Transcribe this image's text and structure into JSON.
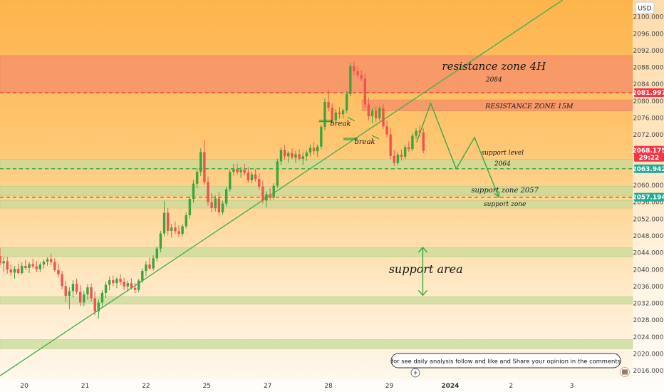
{
  "chart_data": {
    "type": "candlestick",
    "currency_label": "USD",
    "y_axis": {
      "range": [
        2014,
        2104
      ],
      "ticks": [
        "2016.000",
        "2020.000",
        "2024.000",
        "2028.000",
        "2032.000",
        "2036.000",
        "2040.000",
        "2044.000",
        "2048.000",
        "2052.000",
        "2056.000",
        "2060.000",
        "2064.000",
        "2068.000",
        "2072.000",
        "2076.000",
        "2080.000",
        "2084.000",
        "2088.000",
        "2092.000",
        "2096.000",
        "2100.000"
      ],
      "tick_values": [
        2016,
        2020,
        2024,
        2028,
        2032,
        2036,
        2040,
        2044,
        2048,
        2052,
        2056,
        2060,
        2064,
        2068,
        2072,
        2076,
        2080,
        2084,
        2088,
        2092,
        2096,
        2100
      ]
    },
    "x_axis": {
      "labels": [
        "20",
        "21",
        "22",
        "25",
        "27",
        "28",
        "29",
        "2024",
        "2",
        "3"
      ],
      "bold_labels": [
        "2024"
      ],
      "positions": [
        0,
        1,
        2,
        3,
        4,
        5,
        6,
        7,
        8,
        9
      ],
      "range": [
        -0.4,
        10.0
      ]
    },
    "price_badges": [
      {
        "label": "2081.997",
        "value": 2081.997,
        "color": "#f23645"
      },
      {
        "label": "2068.175",
        "value": 2068.175,
        "sub": "29:22",
        "color": "#f23645"
      },
      {
        "label": "2063.942",
        "value": 2063.942,
        "color": "#22ab94"
      },
      {
        "label": "2057.194",
        "value": 2057.194,
        "color": "#22ab94"
      }
    ],
    "zones": [
      {
        "kind": "resistance",
        "from": 2082.0,
        "to": 2090.8,
        "label": "resistance zone 4H",
        "sub": "2084",
        "color": "#f7936b"
      },
      {
        "kind": "resistance",
        "from": 2077.7,
        "to": 2080.3,
        "label": "RESISTANCE ZONE 15M",
        "color": "#f7936b"
      },
      {
        "kind": "support",
        "from": 2063.9,
        "to": 2066.2,
        "label": "support level",
        "sub": "2064",
        "color": "#c7dc9a"
      },
      {
        "kind": "support",
        "from": 2057.6,
        "to": 2059.8,
        "label": "support zone 2057",
        "color": "#c7dc9a"
      },
      {
        "kind": "support",
        "from": 2054.6,
        "to": 2056.4,
        "label": "support zone",
        "color": "#c7dc9a"
      },
      {
        "kind": "support",
        "from": 2043.0,
        "to": 2045.2,
        "label": "support area",
        "color": "#c7dc9a"
      },
      {
        "kind": "support",
        "from": 2031.8,
        "to": 2033.6,
        "label": "",
        "color": "#c7dc9a"
      },
      {
        "kind": "support",
        "from": 2021.2,
        "to": 2023.4,
        "label": "",
        "color": "#c7dc9a"
      }
    ],
    "dashed_levels": [
      {
        "value": 2081.997,
        "color": "#f23645"
      },
      {
        "value": 2063.942,
        "color": "#2e9e3f"
      },
      {
        "value": 2057.194,
        "color": "#2e9e3f"
      }
    ],
    "trendline": {
      "from": [
        -0.4,
        2014.8
      ],
      "to": [
        8.85,
        2104
      ],
      "color": "#4caf50"
    },
    "breaks": [
      {
        "label": "break",
        "x": 5.15,
        "y": 2074.8
      },
      {
        "label": "break",
        "x": 5.55,
        "y": 2070.5
      }
    ],
    "projection": [
      [
        6.45,
        2070.3
      ],
      [
        6.68,
        2079.5
      ],
      [
        7.1,
        2063.9
      ],
      [
        7.4,
        2071.4
      ],
      [
        7.8,
        2057.2
      ]
    ],
    "support_arrow": {
      "x": 6.55,
      "top": 2045.3,
      "bottom": 2033.9
    },
    "candles": [
      [
        -0.4,
        2043.3,
        2045.2,
        2041.0,
        2041.5
      ],
      [
        -0.34,
        2041.5,
        2043.0,
        2039.5,
        2042.0
      ],
      [
        -0.28,
        2042.0,
        2043.0,
        2039.0,
        2040.0
      ],
      [
        -0.22,
        2040.0,
        2041.2,
        2038.6,
        2039.3
      ],
      [
        -0.16,
        2039.3,
        2040.9,
        2037.8,
        2040.2
      ],
      [
        -0.1,
        2040.2,
        2041.4,
        2038.9,
        2039.2
      ],
      [
        -0.04,
        2039.2,
        2041.7,
        2038.8,
        2040.9
      ],
      [
        0.02,
        2040.9,
        2042.3,
        2039.9,
        2040.4
      ],
      [
        0.08,
        2040.4,
        2041.9,
        2039.2,
        2041.3
      ],
      [
        0.14,
        2041.3,
        2042.6,
        2040.3,
        2040.8
      ],
      [
        0.2,
        2040.8,
        2042.1,
        2039.4,
        2040.1
      ],
      [
        0.26,
        2040.1,
        2041.8,
        2039.4,
        2041.2
      ],
      [
        0.32,
        2041.2,
        2042.4,
        2040.3,
        2041.9
      ],
      [
        0.38,
        2041.9,
        2042.9,
        2040.9,
        2042.5
      ],
      [
        0.44,
        2042.5,
        2043.8,
        2041.1,
        2041.8
      ],
      [
        0.5,
        2041.8,
        2042.7,
        2039.5,
        2039.9
      ],
      [
        0.56,
        2039.9,
        2041.3,
        2038.3,
        2038.9
      ],
      [
        0.62,
        2038.9,
        2039.7,
        2035.3,
        2036.1
      ],
      [
        0.68,
        2036.1,
        2037.4,
        2032.3,
        2033.8
      ],
      [
        0.74,
        2033.8,
        2035.8,
        2030.6,
        2034.9
      ],
      [
        0.8,
        2034.9,
        2037.5,
        2033.4,
        2036.6
      ],
      [
        0.86,
        2036.6,
        2037.8,
        2034.1,
        2034.7
      ],
      [
        0.92,
        2034.7,
        2036.3,
        2031.4,
        2032.2
      ],
      [
        0.98,
        2032.2,
        2034.9,
        2031.3,
        2034.1
      ],
      [
        1.04,
        2034.1,
        2036.6,
        2032.8,
        2035.8
      ],
      [
        1.1,
        2035.8,
        2036.7,
        2032.4,
        2033.2
      ],
      [
        1.16,
        2033.2,
        2034.8,
        2029.2,
        2030.1
      ],
      [
        1.22,
        2030.1,
        2032.9,
        2028.3,
        2032.2
      ],
      [
        1.28,
        2032.2,
        2035.1,
        2031.1,
        2034.5
      ],
      [
        1.34,
        2034.5,
        2037.2,
        2033.3,
        2036.4
      ],
      [
        1.4,
        2036.4,
        2038.4,
        2035.1,
        2037.5
      ],
      [
        1.46,
        2037.5,
        2038.6,
        2036.0,
        2036.8
      ],
      [
        1.52,
        2036.8,
        2038.2,
        2035.6,
        2037.8
      ],
      [
        1.58,
        2037.8,
        2038.9,
        2036.3,
        2037.1
      ],
      [
        1.64,
        2037.1,
        2038.1,
        2035.2,
        2036.0
      ],
      [
        1.7,
        2036.0,
        2037.4,
        2034.8,
        2036.8
      ],
      [
        1.76,
        2036.8,
        2037.9,
        2035.3,
        2035.7
      ],
      [
        1.82,
        2035.7,
        2036.9,
        2034.4,
        2035.2
      ],
      [
        1.88,
        2035.2,
        2037.8,
        2034.6,
        2037.4
      ],
      [
        1.94,
        2037.4,
        2040.3,
        2036.9,
        2039.7
      ],
      [
        2.0,
        2039.7,
        2042.0,
        2038.5,
        2041.2
      ],
      [
        2.06,
        2041.2,
        2042.9,
        2039.9,
        2040.3
      ],
      [
        2.12,
        2040.3,
        2043.4,
        2039.8,
        2042.7
      ],
      [
        2.18,
        2042.7,
        2045.6,
        2041.9,
        2045.0
      ],
      [
        2.24,
        2045.0,
        2049.2,
        2044.1,
        2048.6
      ],
      [
        2.3,
        2048.6,
        2056.3,
        2047.9,
        2053.5
      ],
      [
        2.36,
        2053.5,
        2054.6,
        2048.1,
        2049.2
      ],
      [
        2.42,
        2049.2,
        2050.8,
        2047.6,
        2050.0
      ],
      [
        2.48,
        2050.0,
        2051.4,
        2048.4,
        2049.1
      ],
      [
        2.54,
        2049.1,
        2050.5,
        2047.7,
        2048.5
      ],
      [
        2.6,
        2048.5,
        2050.9,
        2047.9,
        2050.3
      ],
      [
        2.66,
        2050.3,
        2053.6,
        2049.8,
        2052.9
      ],
      [
        2.72,
        2052.9,
        2057.4,
        2052.1,
        2056.8
      ],
      [
        2.78,
        2056.8,
        2061.3,
        2055.9,
        2060.4
      ],
      [
        2.84,
        2060.4,
        2064.1,
        2059.3,
        2063.2
      ],
      [
        2.9,
        2063.2,
        2068.8,
        2062.2,
        2067.9
      ],
      [
        2.96,
        2067.9,
        2070.7,
        2060.1,
        2060.8
      ],
      [
        3.02,
        2060.8,
        2062.1,
        2055.1,
        2056.0
      ],
      [
        3.08,
        2056.0,
        2058.2,
        2053.6,
        2054.6
      ],
      [
        3.14,
        2054.6,
        2057.6,
        2053.8,
        2056.9
      ],
      [
        3.2,
        2056.9,
        2058.4,
        2052.8,
        2053.6
      ],
      [
        3.26,
        2053.6,
        2056.3,
        2053.0,
        2055.7
      ],
      [
        3.32,
        2055.7,
        2059.7,
        2055.0,
        2059.1
      ],
      [
        3.38,
        2059.1,
        2063.8,
        2058.5,
        2063.2
      ],
      [
        3.44,
        2063.2,
        2065.1,
        2062.3,
        2063.9
      ],
      [
        3.5,
        2063.9,
        2065.2,
        2062.5,
        2063.1
      ],
      [
        3.56,
        2063.1,
        2064.4,
        2061.8,
        2063.7
      ],
      [
        3.62,
        2063.7,
        2065.1,
        2062.4,
        2063.0
      ],
      [
        3.68,
        2063.0,
        2064.3,
        2060.6,
        2061.2
      ],
      [
        3.74,
        2061.2,
        2063.2,
        2060.5,
        2062.6
      ],
      [
        3.8,
        2062.6,
        2063.9,
        2060.9,
        2061.5
      ],
      [
        3.86,
        2061.5,
        2062.8,
        2058.9,
        2059.7
      ],
      [
        3.92,
        2059.7,
        2061.1,
        2055.7,
        2056.4
      ],
      [
        3.98,
        2056.4,
        2058.6,
        2054.8,
        2057.9
      ],
      [
        4.04,
        2057.9,
        2059.3,
        2056.4,
        2057.1
      ],
      [
        4.1,
        2057.1,
        2060.5,
        2056.6,
        2059.9
      ],
      [
        4.16,
        2059.9,
        2066.3,
        2059.4,
        2065.7
      ],
      [
        4.22,
        2065.7,
        2069.1,
        2064.8,
        2068.4
      ],
      [
        4.28,
        2068.4,
        2069.6,
        2066.1,
        2066.9
      ],
      [
        4.34,
        2066.9,
        2068.1,
        2065.4,
        2067.7
      ],
      [
        4.4,
        2067.7,
        2068.8,
        2066.2,
        2066.6
      ],
      [
        4.46,
        2066.6,
        2068.1,
        2065.3,
        2067.4
      ],
      [
        4.52,
        2067.4,
        2068.6,
        2065.9,
        2066.3
      ],
      [
        4.58,
        2066.3,
        2067.8,
        2064.8,
        2066.9
      ],
      [
        4.64,
        2066.9,
        2068.3,
        2065.8,
        2067.8
      ],
      [
        4.7,
        2067.8,
        2069.7,
        2066.9,
        2068.9
      ],
      [
        4.76,
        2068.9,
        2070.3,
        2067.3,
        2068.1
      ],
      [
        4.82,
        2068.1,
        2069.7,
        2066.8,
        2069.2
      ],
      [
        4.88,
        2069.2,
        2074.4,
        2068.6,
        2073.9
      ],
      [
        4.94,
        2073.9,
        2080.6,
        2073.1,
        2079.8
      ],
      [
        5.0,
        2079.8,
        2082.7,
        2077.6,
        2078.4
      ],
      [
        5.06,
        2078.4,
        2079.5,
        2074.8,
        2075.4
      ],
      [
        5.12,
        2075.4,
        2078.1,
        2074.7,
        2077.3
      ],
      [
        5.18,
        2077.3,
        2078.6,
        2075.8,
        2076.9
      ],
      [
        5.24,
        2076.9,
        2078.2,
        2075.9,
        2077.8
      ],
      [
        5.3,
        2077.8,
        2082.4,
        2077.1,
        2081.7
      ],
      [
        5.36,
        2081.7,
        2089.1,
        2081.2,
        2088.3
      ],
      [
        5.42,
        2088.3,
        2089.4,
        2086.1,
        2087.1
      ],
      [
        5.48,
        2087.1,
        2088.2,
        2085.4,
        2086.2
      ],
      [
        5.54,
        2086.2,
        2087.4,
        2084.7,
        2085.3
      ],
      [
        5.6,
        2085.3,
        2086.6,
        2078.4,
        2079.2
      ],
      [
        5.66,
        2079.2,
        2080.8,
        2075.6,
        2076.4
      ],
      [
        5.72,
        2076.4,
        2078.4,
        2074.8,
        2077.7
      ],
      [
        5.78,
        2077.7,
        2078.7,
        2075.1,
        2075.9
      ],
      [
        5.84,
        2075.9,
        2078.9,
        2075.3,
        2078.3
      ],
      [
        5.9,
        2078.3,
        2079.4,
        2073.4,
        2074.0
      ],
      [
        5.96,
        2074.0,
        2075.4,
        2071.4,
        2072.1
      ],
      [
        6.02,
        2072.1,
        2073.6,
        2066.3,
        2067.0
      ],
      [
        6.08,
        2067.0,
        2068.4,
        2064.6,
        2065.3
      ],
      [
        6.14,
        2065.3,
        2067.9,
        2064.8,
        2067.3
      ],
      [
        6.2,
        2067.3,
        2068.5,
        2065.9,
        2066.8
      ],
      [
        6.26,
        2066.8,
        2069.7,
        2066.2,
        2069.1
      ],
      [
        6.32,
        2069.1,
        2070.4,
        2068.0,
        2068.6
      ],
      [
        6.38,
        2068.6,
        2072.4,
        2068.1,
        2071.8
      ],
      [
        6.44,
        2071.8,
        2073.6,
        2071.0,
        2072.9
      ],
      [
        6.5,
        2072.9,
        2074.3,
        2071.6,
        2072.6
      ],
      [
        6.56,
        2072.6,
        2073.5,
        2067.6,
        2068.2
      ]
    ],
    "title": "",
    "xlabel": "",
    "ylabel": ""
  },
  "annotations": {
    "resistance_4h": "resistance zone 4H",
    "resistance_4h_sub": "2084",
    "resistance_15m": "RESISTANCE ZONE 15M",
    "support_level": "support level",
    "support_level_sub": "2064",
    "support_zone_2057": "support zone 2057",
    "support_zone": "support zone",
    "support_area": "support area",
    "break_1": "break",
    "break_2": "break"
  },
  "comment_box": {
    "text": "for see daily analysis follow and like and Share your opinion in the comments"
  },
  "icons": {
    "lightning": "lightning-icon",
    "flag": "flag-icon"
  },
  "colors": {
    "up": "#26a69a",
    "up_fill": "#3ca53c",
    "down": "#ef5350",
    "bg_top": "#fdb14a",
    "bg_bottom": "#fffaf2"
  }
}
